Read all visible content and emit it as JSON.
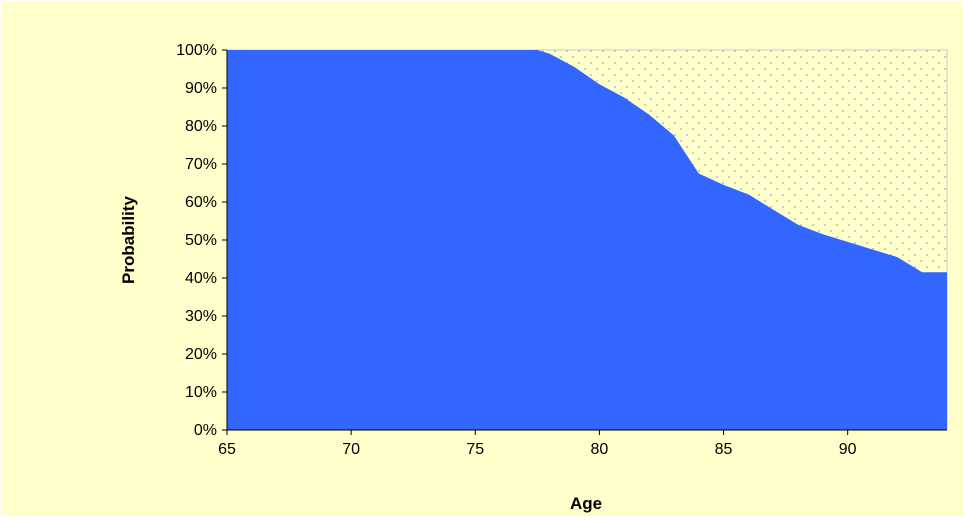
{
  "chart_data": {
    "type": "area",
    "title": "",
    "xlabel": "Age",
    "ylabel": "Probability",
    "xlim": [
      65,
      94
    ],
    "ylim": [
      0,
      100
    ],
    "x_ticks": [
      65,
      70,
      75,
      80,
      85,
      90
    ],
    "y_ticks": [
      0,
      10,
      20,
      30,
      40,
      50,
      60,
      70,
      80,
      90,
      100
    ],
    "y_tick_labels": [
      "0%",
      "10%",
      "20%",
      "30%",
      "40%",
      "50%",
      "60%",
      "70%",
      "80%",
      "90%",
      "100%"
    ],
    "x_tick_labels": [
      "65",
      "70",
      "75",
      "80",
      "85",
      "90"
    ],
    "grid": false,
    "legend": "none",
    "colors": {
      "area_fill": "#3366ff",
      "plot_background": "#ffffcc",
      "pattern_dot": "#9fa8c4",
      "chart_background": "#ffffcc"
    },
    "series": [
      {
        "x": [
          65,
          66,
          67,
          68,
          69,
          70,
          71,
          72,
          73,
          74,
          75,
          76,
          77,
          77.5,
          78,
          79,
          80,
          81,
          82,
          83,
          84,
          85,
          86,
          87,
          88,
          89,
          90,
          91,
          92,
          93,
          94
        ],
        "values": [
          100,
          100,
          100,
          100,
          100,
          100,
          100,
          100,
          100,
          100,
          100,
          100,
          100,
          100,
          99,
          95.5,
          91,
          87.5,
          83,
          77.5,
          67.5,
          64.5,
          62,
          58,
          54,
          51.5,
          49.5,
          47.5,
          45.5,
          41.5,
          41.5
        ]
      }
    ]
  }
}
